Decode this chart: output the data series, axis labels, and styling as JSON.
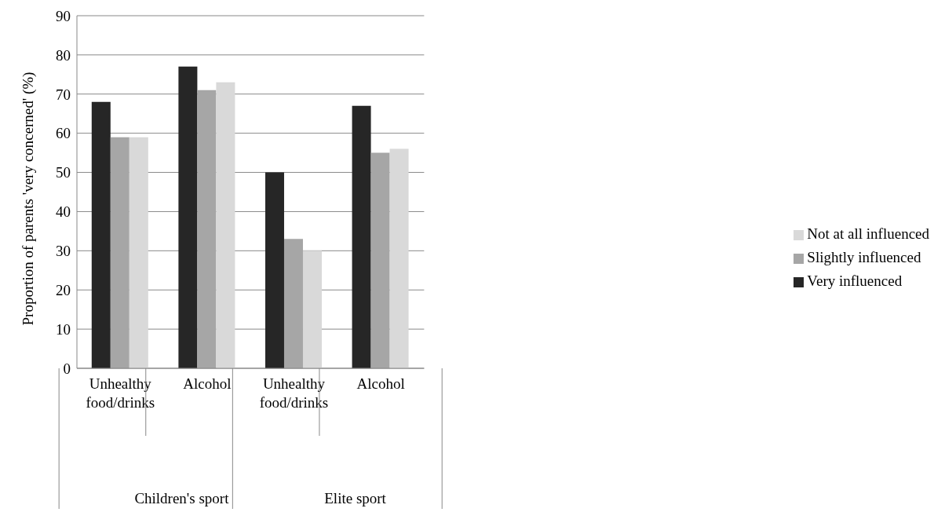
{
  "chart_data": {
    "type": "bar",
    "ylabel": "Proportion of parents 'very concerned' (%)",
    "categories": [
      "Unhealthy food/drinks",
      "Alcohol",
      "Unhealthy food/drinks",
      "Alcohol"
    ],
    "annotations": [
      "Children's sport",
      "Elite sport"
    ],
    "series": [
      {
        "name": "Very influenced",
        "color": "#262626",
        "values": [
          68,
          77,
          50,
          67
        ]
      },
      {
        "name": "Slightly influenced",
        "color": "#a6a6a6",
        "values": [
          59,
          71,
          33,
          55
        ]
      },
      {
        "name": "Not at all influenced",
        "color": "#d9d9d9",
        "values": [
          59,
          73,
          30,
          56
        ]
      }
    ],
    "ylim": [
      0,
      90
    ],
    "yticks": [
      0,
      10,
      20,
      30,
      40,
      50,
      60,
      70,
      80,
      90
    ],
    "grid": "y",
    "legend": "right"
  }
}
